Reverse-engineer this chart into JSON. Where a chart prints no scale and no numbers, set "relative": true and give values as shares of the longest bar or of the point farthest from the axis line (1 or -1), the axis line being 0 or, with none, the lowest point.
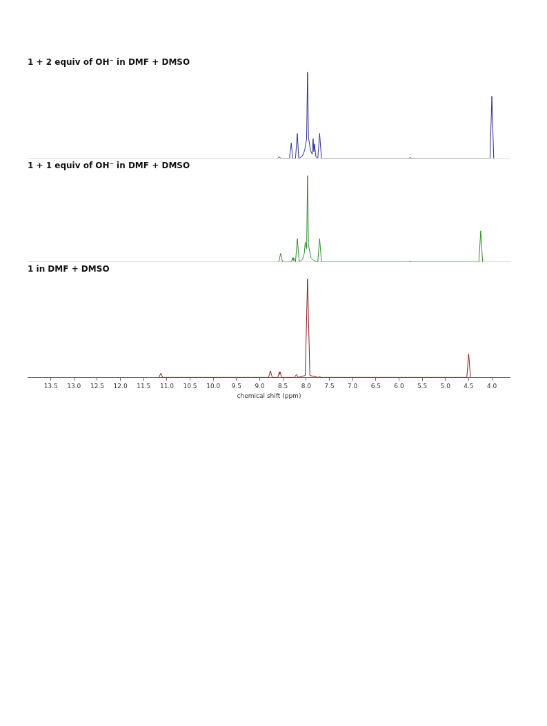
{
  "chart_data": [
    {
      "type": "line",
      "title": "1 + 2 equiv of OH⁻ in DMF + DMSO",
      "relative": true,
      "xlim": [
        14.0,
        3.6
      ],
      "tick_labels": false,
      "marker": "none",
      "series": [
        {
          "color": "#2b2f8f",
          "x": [
            8.62,
            8.58,
            8.54,
            8.36,
            8.32,
            8.29,
            8.23,
            8.19,
            8.16,
            8.08,
            8.03,
            7.99,
            7.97,
            7.95,
            7.91,
            7.87,
            7.85,
            7.835,
            7.82,
            7.79,
            7.75,
            7.71,
            7.67,
            5.8,
            5.76,
            5.72,
            4.04,
            4.0,
            3.96
          ],
          "values": [
            0,
            0.02,
            0,
            0,
            0.18,
            0,
            0,
            0.29,
            0,
            0.03,
            0.1,
            0.23,
            1,
            0.25,
            0.1,
            0.05,
            0.23,
            0.08,
            0.17,
            0.02,
            0,
            0.29,
            0,
            0,
            0.01,
            0,
            0,
            0.72,
            0
          ]
        }
      ]
    },
    {
      "type": "line",
      "title": "1 + 1 equiv of OH⁻ in DMF + DMSO",
      "relative": true,
      "xlim": [
        14.0,
        3.6
      ],
      "tick_labels": false,
      "marker": "none",
      "series": [
        {
          "color": "#2e8b2e",
          "x": [
            8.59,
            8.55,
            8.51,
            8.32,
            8.29,
            8.28,
            8.27,
            8.23,
            8.19,
            8.15,
            8.08,
            8.04,
            8.02,
            7.99,
            7.97,
            7.95,
            7.9,
            7.84,
            7.8,
            7.75,
            7.71,
            7.67,
            5.8,
            5.76,
            5.72,
            4.28,
            4.24,
            4.2
          ],
          "values": [
            0,
            0.1,
            0,
            0,
            0.05,
            0.02,
            0.05,
            0,
            0.27,
            0,
            0.03,
            0.1,
            0.23,
            0.15,
            1,
            0.2,
            0.05,
            0.02,
            0.01,
            0,
            0.27,
            0,
            0,
            0.01,
            0,
            0,
            0.36,
            0
          ]
        }
      ]
    },
    {
      "type": "line",
      "title": "1 in DMF + DMSO",
      "relative": true,
      "xlim": [
        14.0,
        3.6
      ],
      "tick_labels": "x",
      "marker": "none",
      "xlabel": "chemical shift (ppm)",
      "xticks": [
        13.5,
        {
          "value": 13,
          "label": "13.0"
        },
        12.5,
        {
          "value": 12,
          "label": "12.0"
        },
        11.5,
        {
          "value": 11,
          "label": "11.0"
        },
        10.5,
        {
          "value": 10,
          "label": "10.0"
        },
        9.5,
        {
          "value": 9,
          "label": "9.0"
        },
        8.5,
        {
          "value": 8,
          "label": "8.0"
        },
        7.5,
        {
          "value": 7,
          "label": "7.0"
        },
        6.5,
        {
          "value": 6,
          "label": "6.0"
        },
        5.5,
        {
          "value": 5,
          "label": "5.0"
        },
        4.5,
        {
          "value": 4,
          "label": "4.0"
        }
      ],
      "series": [
        {
          "color": "#8b1a1a",
          "x": [
            11.17,
            11.13,
            11.09,
            8.81,
            8.77,
            8.73,
            8.61,
            8.58,
            8.57,
            8.56,
            8.53,
            8.25,
            8.21,
            8.17,
            8.02,
            7.97,
            7.92,
            7.74,
            7.71,
            7.68,
            4.54,
            4.5,
            4.46
          ],
          "values": [
            0,
            0.043,
            0,
            0,
            0.066,
            0,
            0,
            0.056,
            0.03,
            0.056,
            0,
            0,
            0.03,
            0,
            0.02,
            1,
            0.02,
            0,
            0.008,
            0,
            0,
            0.24,
            0
          ]
        }
      ]
    }
  ]
}
